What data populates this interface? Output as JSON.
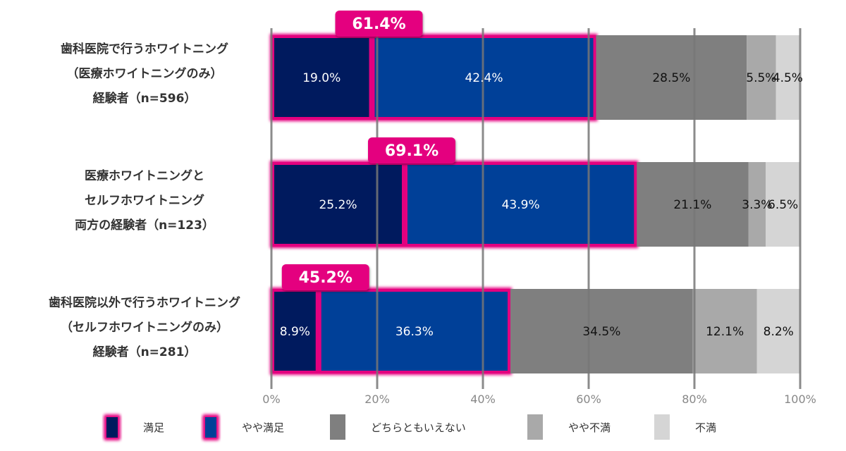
{
  "chart_data": {
    "type": "bar",
    "orientation": "horizontal",
    "stacked": true,
    "categories": [
      [
        "歯科医院で行うホワイトニング",
        "（医療ホワイトニングのみ）",
        "経験者（n=596）"
      ],
      [
        "医療ホワイトニングと",
        "セルフホワイトニング",
        "両方の経験者（n=123）"
      ],
      [
        "歯科医院以外で行うホワイトニング",
        "（セルフホワイトニングのみ）",
        "経験者（n=281）"
      ]
    ],
    "series": [
      {
        "name": "満足",
        "color": "#001a5e",
        "label_color": "#ffffff",
        "values": [
          19.0,
          25.2,
          8.9
        ],
        "labels": [
          "19.0%",
          "25.2%",
          "8.9%"
        ]
      },
      {
        "name": "やや満足",
        "color": "#004098",
        "label_color": "#ffffff",
        "values": [
          42.4,
          43.9,
          36.3
        ],
        "labels": [
          "42.4%",
          "43.9%",
          "36.3%"
        ]
      },
      {
        "name": "どちらともいえない",
        "color": "#7f7f7f",
        "label_color": "#111111",
        "values": [
          28.5,
          21.1,
          34.5
        ],
        "labels": [
          "28.5%",
          "21.1%",
          "34.5%"
        ]
      },
      {
        "name": "やや不満",
        "color": "#a9a9a9",
        "label_color": "#111111",
        "values": [
          5.5,
          3.3,
          12.1
        ],
        "labels": [
          "5.5%",
          "3.3%",
          "12.1%"
        ]
      },
      {
        "name": "不満",
        "color": "#d5d5d5",
        "label_color": "#111111",
        "values": [
          4.5,
          6.5,
          8.2
        ],
        "labels": [
          "4.5%",
          "6.5%",
          "8.2%"
        ]
      }
    ],
    "totals_satisfied": [
      "61.4%",
      "69.1%",
      "45.2%"
    ],
    "highlight_color": "#e4007f",
    "xlim": [
      0,
      100
    ],
    "xticks": [
      "0%",
      "20%",
      "40%",
      "60%",
      "80%",
      "100%"
    ],
    "grid": true,
    "legend_position": "bottom"
  }
}
